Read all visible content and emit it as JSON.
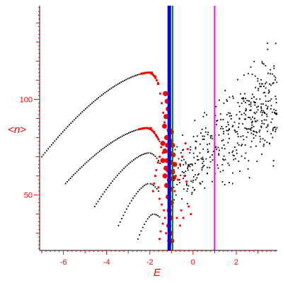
{
  "chart_data": {
    "type": "scatter",
    "title": "",
    "xlabel": "E",
    "ylabel": "<n>",
    "xlim": [
      -7.1,
      3.9
    ],
    "ylim": [
      21,
      149
    ],
    "xticks": [
      -6,
      -4,
      -2,
      0,
      2
    ],
    "xtick_labels": [
      "-6",
      "-4",
      "-2",
      "0",
      "2"
    ],
    "yticks": [
      50,
      100
    ],
    "ytick_labels": [
      "50",
      "100"
    ],
    "grid": false,
    "legend": "none",
    "colors": {
      "axis": "#ff0000",
      "label": "#ff0000",
      "frame": "#000000",
      "curve_points": "#000000",
      "cloud_points": "#000000",
      "red_points": "#ff0000"
    },
    "curves": [
      {
        "x_start": -7.0,
        "y_start": 70,
        "x_peak": -2.05,
        "y_peak": 114,
        "x_end": -1.6,
        "y_end": 108,
        "step": 0.075
      },
      {
        "x_start": -5.9,
        "y_start": 56,
        "x_peak": -2.15,
        "y_peak": 85,
        "x_end": -1.55,
        "y_end": 78,
        "step": 0.075
      },
      {
        "x_start": -4.55,
        "y_start": 44,
        "x_peak": -2.05,
        "y_peak": 72,
        "x_end": -1.5,
        "y_end": 66,
        "step": 0.075
      },
      {
        "x_start": -3.45,
        "y_start": 34,
        "x_peak": -2.05,
        "y_peak": 56,
        "x_end": -1.6,
        "y_end": 52,
        "step": 0.075
      },
      {
        "x_start": -2.55,
        "y_start": 27,
        "x_peak": -1.85,
        "y_peak": 40,
        "x_end": -1.5,
        "y_end": 38,
        "step": 0.075
      }
    ],
    "red_points_small": [
      {
        "x": -1.9,
        "y": 114
      },
      {
        "x": -1.75,
        "y": 112
      },
      {
        "x": -1.62,
        "y": 108
      },
      {
        "x": -1.52,
        "y": 103
      },
      {
        "x": -1.45,
        "y": 98
      },
      {
        "x": -1.38,
        "y": 93
      },
      {
        "x": -1.32,
        "y": 88
      },
      {
        "x": -1.95,
        "y": 85
      },
      {
        "x": -1.8,
        "y": 83
      },
      {
        "x": -1.7,
        "y": 81
      },
      {
        "x": -1.6,
        "y": 79
      },
      {
        "x": -1.48,
        "y": 75
      },
      {
        "x": -1.4,
        "y": 72
      },
      {
        "x": -1.55,
        "y": 70
      },
      {
        "x": -1.62,
        "y": 67
      },
      {
        "x": -1.7,
        "y": 63
      },
      {
        "x": -1.75,
        "y": 60
      },
      {
        "x": -1.8,
        "y": 56
      },
      {
        "x": -1.85,
        "y": 52
      },
      {
        "x": -1.6,
        "y": 54
      },
      {
        "x": -1.55,
        "y": 48
      },
      {
        "x": -1.45,
        "y": 45
      },
      {
        "x": -1.35,
        "y": 42
      },
      {
        "x": -1.3,
        "y": 38
      },
      {
        "x": -1.4,
        "y": 35
      },
      {
        "x": -1.5,
        "y": 31
      },
      {
        "x": -1.55,
        "y": 27
      },
      {
        "x": -1.25,
        "y": 30
      },
      {
        "x": -1.15,
        "y": 26
      },
      {
        "x": -1.05,
        "y": 24
      },
      {
        "x": -0.9,
        "y": 63
      },
      {
        "x": -0.8,
        "y": 60
      },
      {
        "x": -0.7,
        "y": 58
      },
      {
        "x": -0.6,
        "y": 66
      },
      {
        "x": -0.5,
        "y": 70
      },
      {
        "x": -0.35,
        "y": 77
      },
      {
        "x": -0.25,
        "y": 74
      },
      {
        "x": -0.4,
        "y": 60
      },
      {
        "x": -0.3,
        "y": 57
      },
      {
        "x": -0.55,
        "y": 42
      },
      {
        "x": -0.45,
        "y": 38
      },
      {
        "x": -0.2,
        "y": 44
      },
      {
        "x": -0.1,
        "y": 40
      },
      {
        "x": -0.6,
        "y": 34
      },
      {
        "x": -0.75,
        "y": 38
      },
      {
        "x": -0.95,
        "y": 44
      },
      {
        "x": -1.05,
        "y": 49
      },
      {
        "x": -0.85,
        "y": 52
      }
    ],
    "red_points_large": [
      {
        "x": -1.28,
        "y": 103
      },
      {
        "x": -1.2,
        "y": 99
      },
      {
        "x": -1.15,
        "y": 95
      },
      {
        "x": -1.25,
        "y": 91
      },
      {
        "x": -1.32,
        "y": 86
      },
      {
        "x": -1.1,
        "y": 84
      },
      {
        "x": -1.22,
        "y": 80
      },
      {
        "x": -1.05,
        "y": 78
      },
      {
        "x": -0.95,
        "y": 76
      },
      {
        "x": -1.18,
        "y": 76
      },
      {
        "x": -1.3,
        "y": 73
      },
      {
        "x": -1.08,
        "y": 72
      },
      {
        "x": -0.92,
        "y": 71
      },
      {
        "x": -1.4,
        "y": 68
      },
      {
        "x": -1.2,
        "y": 68
      },
      {
        "x": -1.02,
        "y": 67
      },
      {
        "x": -0.85,
        "y": 66
      },
      {
        "x": -1.15,
        "y": 63
      },
      {
        "x": -0.95,
        "y": 62
      },
      {
        "x": -1.3,
        "y": 60
      },
      {
        "x": -1.1,
        "y": 58
      },
      {
        "x": -0.9,
        "y": 59
      },
      {
        "x": -1.22,
        "y": 55
      },
      {
        "x": -1.05,
        "y": 53
      },
      {
        "x": -1.15,
        "y": 49
      },
      {
        "x": -1.0,
        "y": 46
      },
      {
        "x": -1.1,
        "y": 42
      },
      {
        "x": -1.02,
        "y": 38
      },
      {
        "x": -1.12,
        "y": 34
      },
      {
        "x": -1.05,
        "y": 30
      },
      {
        "x": -0.98,
        "y": 26
      },
      {
        "x": -1.25,
        "y": 64
      },
      {
        "x": -1.0,
        "y": 83
      },
      {
        "x": -1.4,
        "y": 77
      }
    ],
    "cloud": {
      "x_min": -0.9,
      "x_max": 3.9,
      "y_at_xmin": [
        40,
        80
      ],
      "y_at_xmax": [
        58,
        140
      ],
      "count": 440,
      "seed": 7
    },
    "vertical_lines": [
      {
        "x": -1.1,
        "color": "#0000ff",
        "width": "thick"
      },
      {
        "x": -0.95,
        "color": "#008000",
        "width": "medium"
      },
      {
        "x": 1.0,
        "color": "#ff00ff",
        "width": "medium"
      }
    ]
  }
}
